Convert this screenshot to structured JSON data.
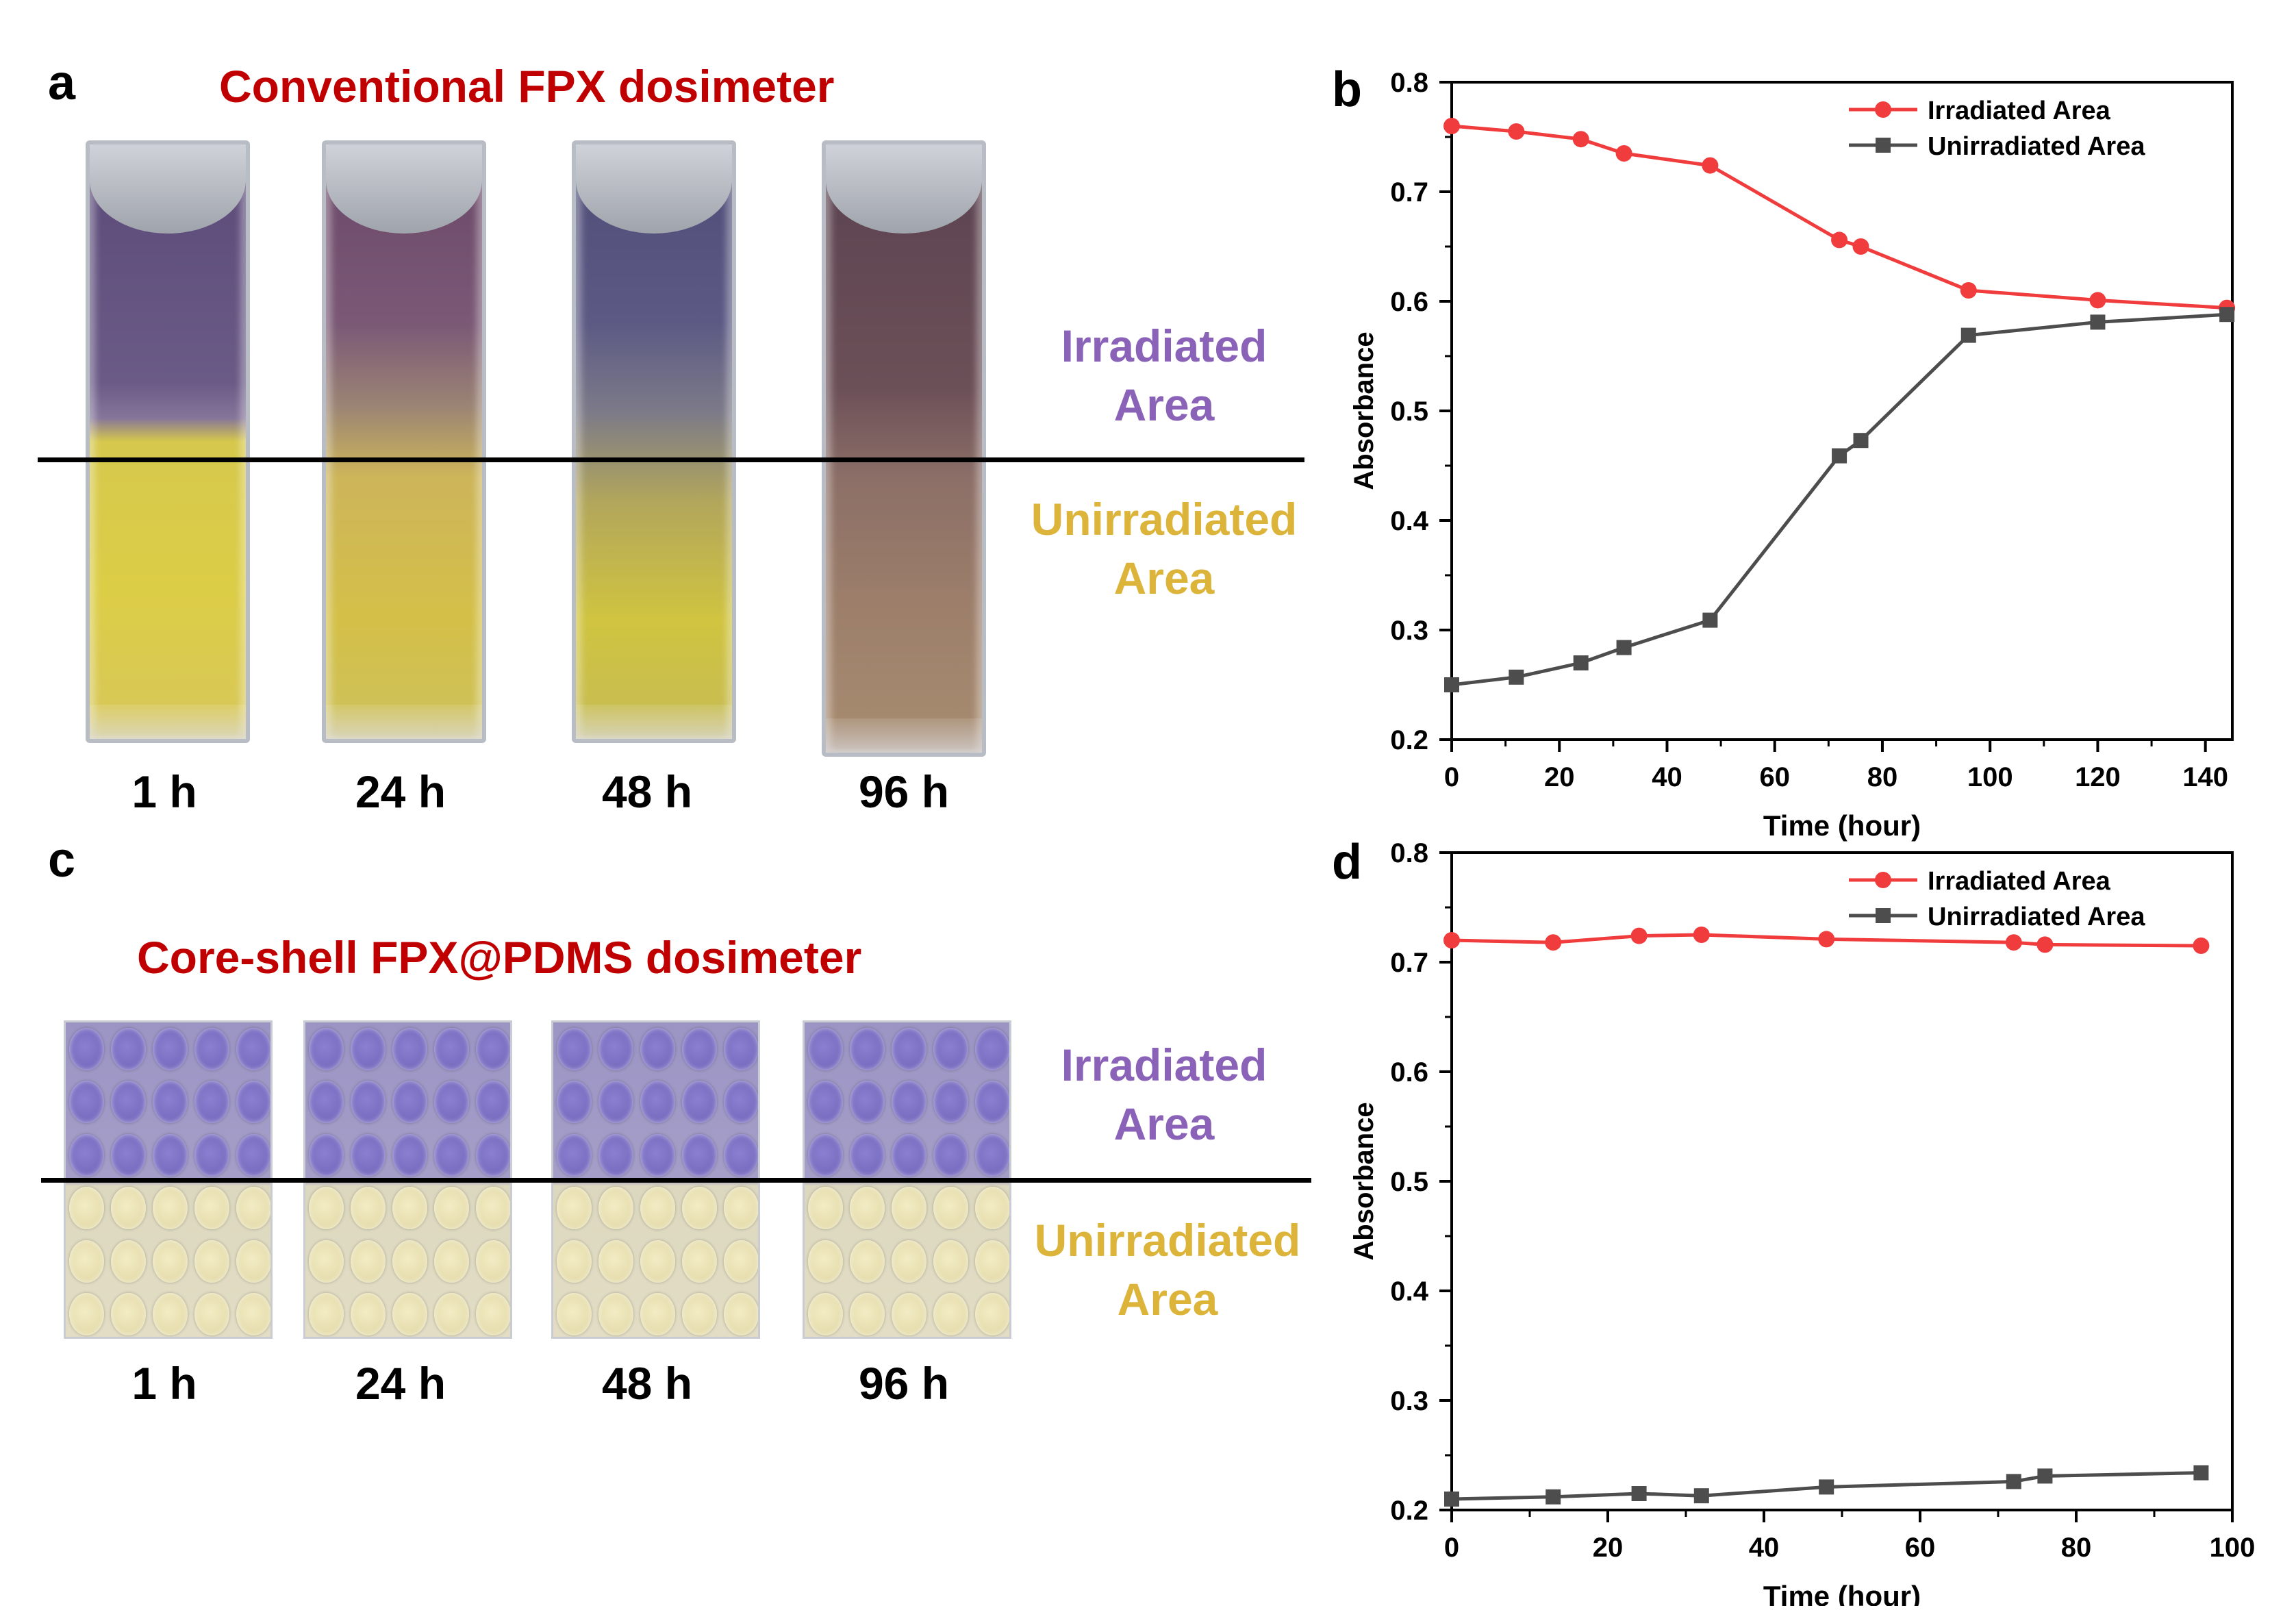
{
  "panels": {
    "a": {
      "label": "a",
      "title": "Conventional FPX dosimeter",
      "irradiated_label": [
        "Irradiated",
        "Area"
      ],
      "unirradiated_label": [
        "Unirradiated",
        "Area"
      ],
      "times": [
        "1 h",
        "24 h",
        "48 h",
        "96 h"
      ]
    },
    "b": {
      "label": "b"
    },
    "c": {
      "label": "c",
      "title": "Core-shell FPX@PDMS dosimeter",
      "irradiated_label": [
        "Irradiated",
        "Area"
      ],
      "unirradiated_label": [
        "Unirradiated",
        "Area"
      ],
      "times": [
        "1 h",
        "24 h",
        "48 h",
        "96 h"
      ]
    },
    "d": {
      "label": "d"
    }
  },
  "colors": {
    "irradiated_series": "#f03c3c",
    "unirradiated_series": "#4d4d4d",
    "title_red": "#c00000",
    "irradiated_text": "#8a63b8",
    "unirradiated_text": "#dcb43a"
  },
  "chart_data": [
    {
      "id": "b",
      "type": "line",
      "title": "",
      "xlabel": "Time (hour)",
      "ylabel": "Absorbance",
      "xlim": [
        0,
        145
      ],
      "ylim": [
        0.2,
        0.8
      ],
      "xticks": [
        0,
        20,
        40,
        60,
        80,
        100,
        120,
        140
      ],
      "yticks": [
        0.2,
        0.3,
        0.4,
        0.5,
        0.6,
        0.7,
        0.8
      ],
      "legend_position": "top-right",
      "grid": false,
      "series": [
        {
          "name": "Irradiated Area",
          "marker": "circle",
          "color": "#f03c3c",
          "x": [
            0,
            12,
            24,
            32,
            48,
            72,
            76,
            96,
            120,
            144
          ],
          "y": [
            0.76,
            0.755,
            0.748,
            0.735,
            0.724,
            0.656,
            0.65,
            0.61,
            0.601,
            0.594
          ]
        },
        {
          "name": "Unirradiated Area",
          "marker": "square",
          "color": "#4d4d4d",
          "x": [
            0,
            12,
            24,
            32,
            48,
            72,
            76,
            96,
            120,
            144
          ],
          "y": [
            0.25,
            0.257,
            0.27,
            0.284,
            0.309,
            0.459,
            0.473,
            0.569,
            0.581,
            0.588
          ]
        }
      ]
    },
    {
      "id": "d",
      "type": "line",
      "title": "",
      "xlabel": "Time (hour)",
      "ylabel": "Absorbance",
      "xlim": [
        0,
        100
      ],
      "ylim": [
        0.2,
        0.8
      ],
      "xticks": [
        0,
        20,
        40,
        60,
        80,
        100
      ],
      "yticks": [
        0.2,
        0.3,
        0.4,
        0.5,
        0.6,
        0.7,
        0.8
      ],
      "legend_position": "top-right",
      "grid": false,
      "series": [
        {
          "name": "Irradiated Area",
          "marker": "circle",
          "color": "#f03c3c",
          "x": [
            0,
            13,
            24,
            32,
            48,
            72,
            76,
            96
          ],
          "y": [
            0.72,
            0.718,
            0.724,
            0.725,
            0.721,
            0.718,
            0.716,
            0.715
          ]
        },
        {
          "name": "Unirradiated Area",
          "marker": "square",
          "color": "#4d4d4d",
          "x": [
            0,
            13,
            24,
            32,
            48,
            72,
            76,
            96
          ],
          "y": [
            0.21,
            0.212,
            0.215,
            0.213,
            0.221,
            0.226,
            0.231,
            0.234
          ]
        }
      ]
    }
  ]
}
